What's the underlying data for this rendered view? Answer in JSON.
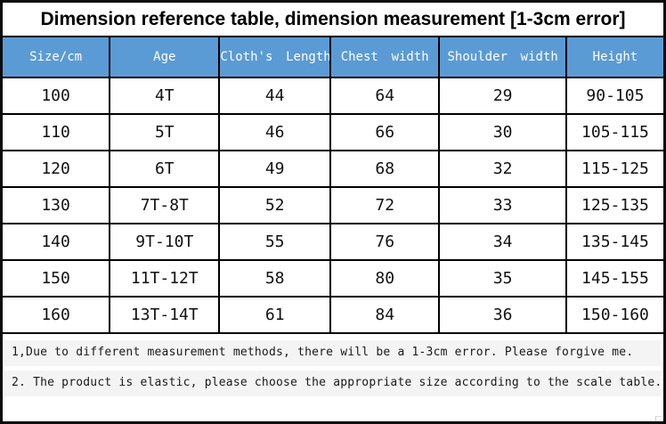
{
  "chart_data": {
    "type": "table",
    "title": "Dimension reference table, dimension measurement [1-3cm error]",
    "columns": [
      "Size/cm",
      "Age",
      "Cloth's Length",
      "Chest width",
      "Shoulder width",
      "Height"
    ],
    "rows": [
      [
        "100",
        "4T",
        "44",
        "64",
        "29",
        "90-105"
      ],
      [
        "110",
        "5T",
        "46",
        "66",
        "30",
        "105-115"
      ],
      [
        "120",
        "6T",
        "49",
        "68",
        "32",
        "115-125"
      ],
      [
        "130",
        "7T-8T",
        "52",
        "72",
        "33",
        "125-135"
      ],
      [
        "140",
        "9T-10T",
        "55",
        "76",
        "34",
        "135-145"
      ],
      [
        "150",
        "11T-12T",
        "58",
        "80",
        "35",
        "145-155"
      ],
      [
        "160",
        "13T-14T",
        "61",
        "84",
        "36",
        "150-160"
      ]
    ],
    "layout": {
      "header_position": "top",
      "grid": true
    }
  },
  "notes": [
    "1,Due to different measurement methods, there will be a 1-3cm error. Please forgive me.",
    "2. The product is elastic, please choose the appropriate size according to the scale table."
  ],
  "colors": {
    "header_bg": "#5b9bd5",
    "header_text": "#ffffff",
    "border": "#000000",
    "body_bg": "#ffffff",
    "body_text": "#111111",
    "note_bg": "#f4f4f4"
  }
}
